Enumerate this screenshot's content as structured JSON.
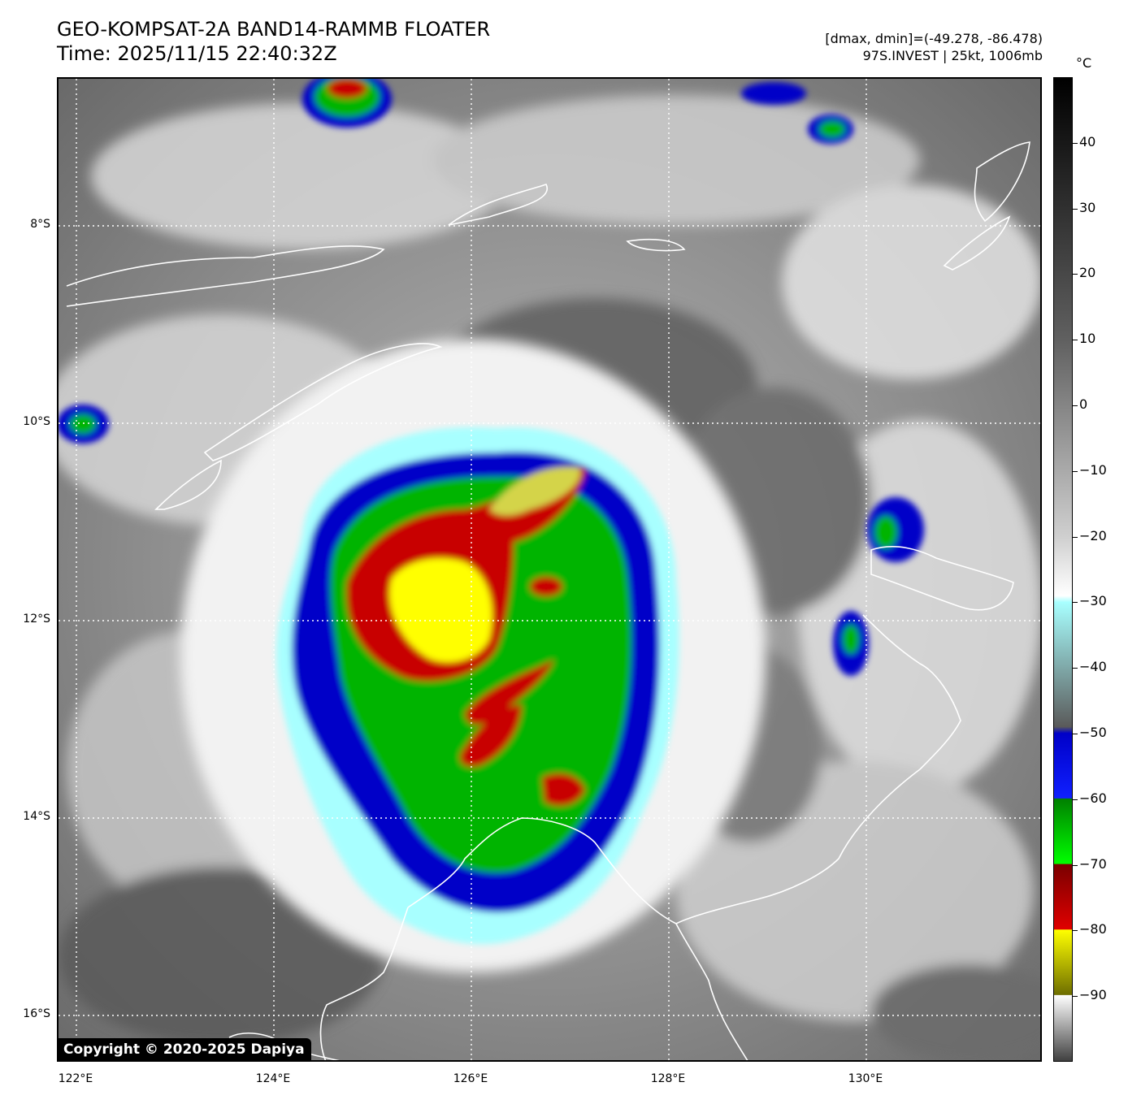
{
  "header": {
    "title": "GEO-KOMPSAT-2A BAND14-RAMMB FLOATER",
    "time": "Time: 2025/11/15 22:40:32Z",
    "range": "[dmax, dmin]=(-49.278, -86.478)",
    "storm": "97S.INVEST | 25kt, 1006mb"
  },
  "map": {
    "copyright": "Copyright © 2020-2025 Dapiya",
    "lat_labels": [
      "8°S",
      "10°S",
      "12°S",
      "14°S",
      "16°S"
    ],
    "lon_labels": [
      "122°E",
      "124°E",
      "126°E",
      "128°E",
      "130°E"
    ],
    "gridlines": "dotted white",
    "coastline_color": "#ffffff"
  },
  "colorbar": {
    "unit": "°C",
    "ticks": [
      "40",
      "30",
      "20",
      "10",
      "0",
      "−10",
      "−20",
      "−30",
      "−40",
      "−50",
      "−60",
      "−70",
      "−80",
      "−90"
    ],
    "tick_values": [
      40,
      30,
      20,
      10,
      0,
      -10,
      -20,
      -30,
      -40,
      -50,
      -60,
      -70,
      -80,
      -90
    ],
    "range": [
      -100,
      50
    ],
    "colors": {
      "warm": "#000000",
      "mid": "#ffffff",
      "cyan": "#a8ffff",
      "blue": "#0000c8",
      "green": "#00b400",
      "red": "#c80000",
      "yellow": "#ffff00",
      "olive": "#6e6e00"
    }
  }
}
